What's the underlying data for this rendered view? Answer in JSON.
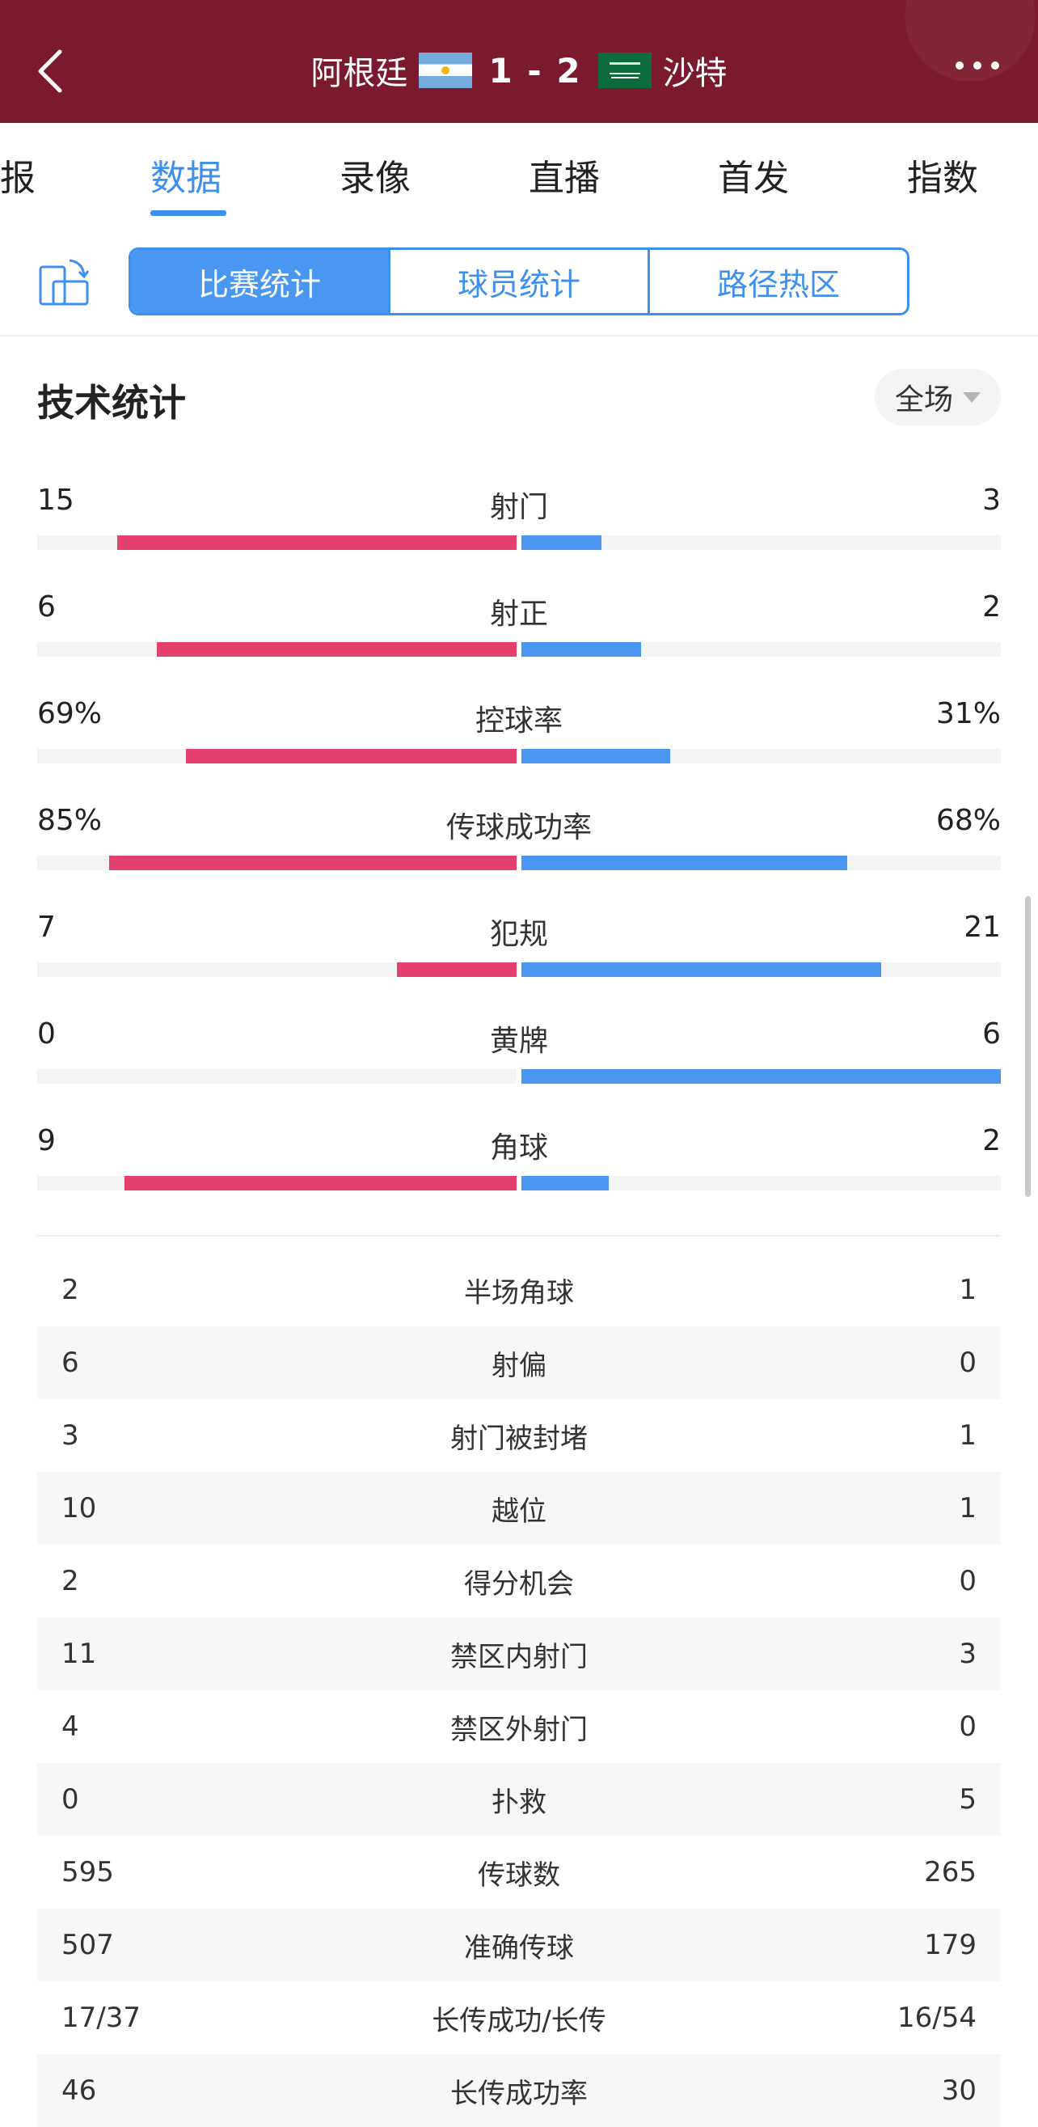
{
  "header": {
    "home_team": "阿根廷",
    "score": "1 - 2",
    "away_team": "沙特"
  },
  "tabs": [
    {
      "label": "报"
    },
    {
      "label": "数据"
    },
    {
      "label": "录像"
    },
    {
      "label": "直播"
    },
    {
      "label": "首发"
    },
    {
      "label": "指数"
    }
  ],
  "segments": [
    {
      "label": "比赛统计"
    },
    {
      "label": "球员统计"
    },
    {
      "label": "路径热区"
    }
  ],
  "section": {
    "title": "技术统计",
    "period": "全场"
  },
  "colors": {
    "header_bg": "#7b1a2c",
    "accent": "#3d8ff0",
    "home_bar": "#e3406e",
    "away_bar": "#4a97f2"
  },
  "bar_stats": [
    {
      "label": "射门",
      "left": "15",
      "right": "3",
      "left_num": 15,
      "right_num": 3
    },
    {
      "label": "射正",
      "left": "6",
      "right": "2",
      "left_num": 6,
      "right_num": 2
    },
    {
      "label": "控球率",
      "left": "69%",
      "right": "31%",
      "left_num": 69,
      "right_num": 31
    },
    {
      "label": "传球成功率",
      "left": "85%",
      "right": "68%",
      "left_num": 85,
      "right_num": 68
    },
    {
      "label": "犯规",
      "left": "7",
      "right": "21",
      "left_num": 7,
      "right_num": 21
    },
    {
      "label": "黄牌",
      "left": "0",
      "right": "6",
      "left_num": 0,
      "right_num": 6
    },
    {
      "label": "角球",
      "left": "9",
      "right": "2",
      "left_num": 9,
      "right_num": 2
    }
  ],
  "table_stats": [
    {
      "label": "半场角球",
      "left": "2",
      "right": "1"
    },
    {
      "label": "射偏",
      "left": "6",
      "right": "0"
    },
    {
      "label": "射门被封堵",
      "left": "3",
      "right": "1"
    },
    {
      "label": "越位",
      "left": "10",
      "right": "1"
    },
    {
      "label": "得分机会",
      "left": "2",
      "right": "0"
    },
    {
      "label": "禁区内射门",
      "left": "11",
      "right": "3"
    },
    {
      "label": "禁区外射门",
      "left": "4",
      "right": "0"
    },
    {
      "label": "扑救",
      "left": "0",
      "right": "5"
    },
    {
      "label": "传球数",
      "left": "595",
      "right": "265"
    },
    {
      "label": "准确传球",
      "left": "507",
      "right": "179"
    },
    {
      "label": "长传成功/长传",
      "left": "17/37",
      "right": "16/54"
    },
    {
      "label": "长传成功率",
      "left": "46",
      "right": "30"
    }
  ]
}
